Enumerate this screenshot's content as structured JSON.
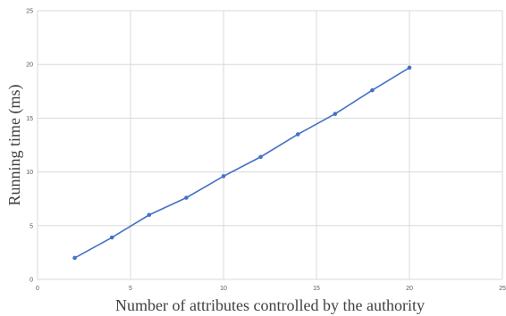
{
  "chart_data": {
    "type": "line",
    "title": "",
    "xlabel": "Number of attributes controlled by the authority",
    "ylabel": "Running time (ms)",
    "xlim": [
      0,
      25
    ],
    "ylim": [
      0,
      25
    ],
    "xticks": [
      "0",
      "5",
      "10",
      "15",
      "20",
      "25"
    ],
    "yticks": [
      "0",
      "5",
      "10",
      "15",
      "20",
      "25"
    ],
    "grid": true,
    "series": [
      {
        "color": "#4472c4",
        "x": [
          2,
          4,
          6,
          8,
          10,
          12,
          14,
          16,
          18,
          20
        ],
        "y": [
          2.0,
          3.9,
          6.0,
          7.6,
          9.6,
          11.4,
          13.5,
          15.4,
          17.6,
          19.7
        ]
      }
    ]
  }
}
